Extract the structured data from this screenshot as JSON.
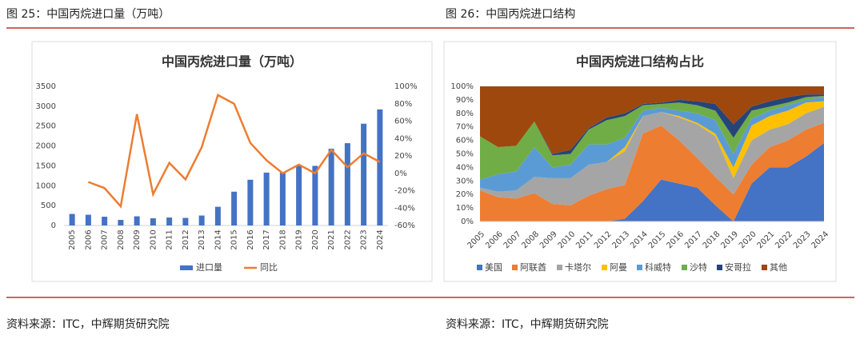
{
  "header": {
    "left": "图 25：中国丙烷进口量（万吨）",
    "right": "图 26：中国丙烷进口结构"
  },
  "chart_data": [
    {
      "type": "bar",
      "title": "中国丙烷进口量（万吨）",
      "categories": [
        "2005",
        "2006",
        "2007",
        "2008",
        "2009",
        "2010",
        "2011",
        "2012",
        "2013",
        "2014",
        "2015",
        "2016",
        "2017",
        "2018",
        "2019",
        "2020",
        "2021",
        "2022",
        "2023",
        "2024"
      ],
      "series": [
        {
          "name": "进口量",
          "type": "bar",
          "color": "#4472c4",
          "values": [
            290,
            270,
            220,
            140,
            230,
            180,
            200,
            190,
            250,
            470,
            850,
            1150,
            1330,
            1330,
            1500,
            1500,
            1930,
            2070,
            2560,
            2920
          ]
        },
        {
          "name": "同比",
          "type": "line",
          "axis": "y2",
          "color": "#ed7d31",
          "values": [
            null,
            -10,
            -17,
            -38,
            68,
            -24,
            12,
            -7,
            30,
            90,
            80,
            35,
            15,
            0,
            10,
            0,
            27,
            7,
            23,
            13
          ]
        }
      ],
      "ylim": [
        0,
        3500
      ],
      "yticks": [
        0,
        500,
        1000,
        1500,
        2000,
        2500,
        3000,
        3500
      ],
      "y2lim": [
        -60,
        100
      ],
      "y2ticks": [
        {
          "value": -60,
          "label": "-60%"
        },
        {
          "value": -40,
          "label": "-40%"
        },
        {
          "value": -20,
          "label": "-20%"
        },
        {
          "value": 0,
          "label": "0%"
        },
        {
          "value": 20,
          "label": "20%"
        },
        {
          "value": 40,
          "label": "40%"
        },
        {
          "value": 60,
          "label": "60%"
        },
        {
          "value": 80,
          "label": "80%"
        },
        {
          "value": 100,
          "label": "100%"
        }
      ],
      "grid": false,
      "legend": "bottom"
    },
    {
      "type": "stacked_area",
      "title": "中国丙烷进口结构占比",
      "categories": [
        "2005",
        "2006",
        "2007",
        "2008",
        "2009",
        "2010",
        "2011",
        "2012",
        "2013",
        "2014",
        "2015",
        "2016",
        "2017",
        "2018",
        "2019",
        "2020",
        "2021",
        "2022",
        "2023",
        "2024"
      ],
      "series": [
        {
          "name": "美国",
          "color": "#4472c4",
          "values": [
            0,
            0,
            0,
            0,
            0,
            0,
            0,
            0,
            2,
            15,
            31,
            28,
            25,
            12,
            0,
            28,
            40,
            40,
            48,
            58
          ]
        },
        {
          "name": "阿联酋",
          "color": "#ed7d31",
          "values": [
            23,
            18,
            17,
            21,
            13,
            12,
            19,
            24,
            25,
            50,
            40,
            32,
            22,
            21,
            20,
            14,
            15,
            20,
            20,
            15
          ]
        },
        {
          "name": "卡塔尔",
          "color": "#a5a5a5",
          "values": [
            2,
            4,
            6,
            12,
            19,
            20,
            23,
            20,
            25,
            13,
            10,
            17,
            25,
            30,
            12,
            18,
            13,
            12,
            12,
            12
          ]
        },
        {
          "name": "阿曼",
          "color": "#ffc000",
          "values": [
            0,
            0,
            0,
            0,
            0,
            0,
            0,
            0,
            3,
            0,
            0,
            1,
            1,
            2,
            8,
            11,
            10,
            10,
            8,
            4
          ]
        },
        {
          "name": "科威特",
          "color": "#5b9bd5",
          "values": [
            6,
            13,
            14,
            22,
            8,
            10,
            15,
            13,
            7,
            4,
            3,
            4,
            7,
            10,
            10,
            5,
            4,
            4,
            2,
            3
          ]
        },
        {
          "name": "沙特",
          "color": "#70ad47",
          "values": [
            32,
            20,
            19,
            19,
            9,
            8,
            11,
            18,
            16,
            4,
            3,
            6,
            6,
            7,
            12,
            6,
            3,
            2,
            2,
            1
          ]
        },
        {
          "name": "安哥拉",
          "color": "#264478",
          "values": [
            0,
            0,
            0,
            0,
            1,
            3,
            1,
            2,
            2,
            1,
            1,
            2,
            3,
            5,
            10,
            3,
            4,
            4,
            2,
            1
          ]
        },
        {
          "name": "其他",
          "color": "#9e480e",
          "values": [
            37,
            45,
            44,
            26,
            50,
            47,
            31,
            23,
            20,
            13,
            12,
            10,
            11,
            13,
            28,
            15,
            11,
            8,
            6,
            6
          ]
        }
      ],
      "ylim": [
        0,
        100
      ],
      "yticks": [
        {
          "value": 0,
          "label": "0%"
        },
        {
          "value": 10,
          "label": "10%"
        },
        {
          "value": 20,
          "label": "20%"
        },
        {
          "value": 30,
          "label": "30%"
        },
        {
          "value": 40,
          "label": "40%"
        },
        {
          "value": 50,
          "label": "50%"
        },
        {
          "value": 60,
          "label": "60%"
        },
        {
          "value": 70,
          "label": "70%"
        },
        {
          "value": 80,
          "label": "80%"
        },
        {
          "value": 90,
          "label": "90%"
        },
        {
          "value": 100,
          "label": "100%"
        }
      ],
      "grid": false,
      "legend": "bottom"
    }
  ],
  "footer": {
    "left": "资料来源：ITC，中辉期货研究院",
    "right": "资料来源：ITC，中辉期货研究院"
  }
}
